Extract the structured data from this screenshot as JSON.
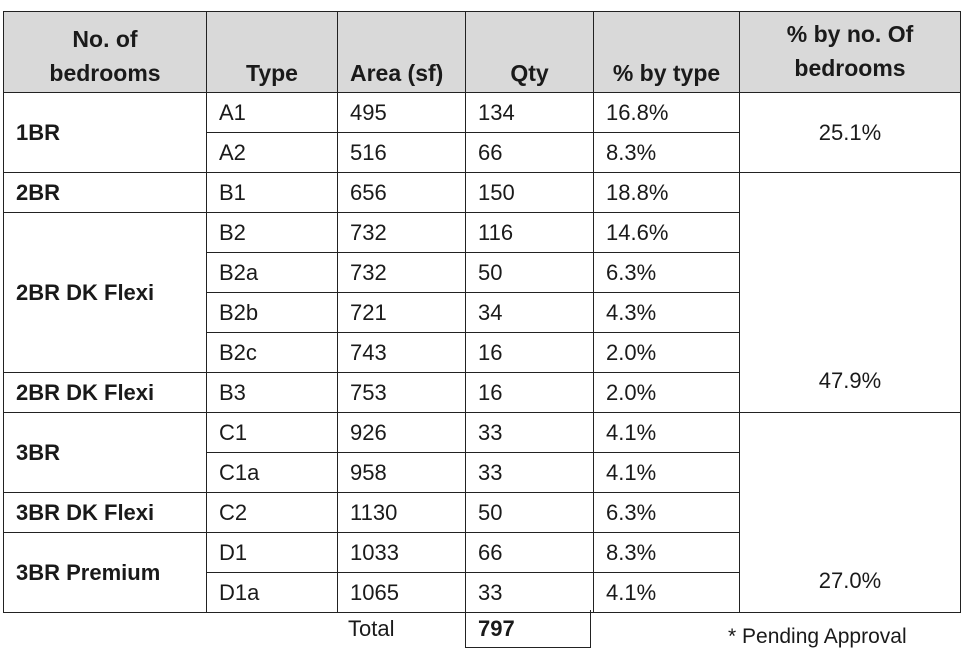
{
  "table": {
    "headers": {
      "bedrooms_line1": "No. of",
      "bedrooms_line2": "bedrooms",
      "type": "Type",
      "area": "Area (sf)",
      "qty": "Qty",
      "pct_type": "% by type",
      "pct_bedrooms_line1": "% by no. Of",
      "pct_bedrooms_line2": "bedrooms"
    },
    "groups": [
      {
        "label": "1BR"
      },
      {
        "label": "2BR"
      },
      {
        "label": "2BR DK Flexi"
      },
      {
        "label": "2BR DK Flexi"
      },
      {
        "label": "3BR"
      },
      {
        "label": "3BR DK Flexi"
      },
      {
        "label": "3BR Premium"
      }
    ],
    "rows": [
      {
        "type": "A1",
        "area": "495",
        "qty": "134",
        "pct": "16.8%"
      },
      {
        "type": "A2",
        "area": "516",
        "qty": "66",
        "pct": "8.3%"
      },
      {
        "type": "B1",
        "area": "656",
        "qty": "150",
        "pct": "18.8%"
      },
      {
        "type": "B2",
        "area": "732",
        "qty": "116",
        "pct": "14.6%"
      },
      {
        "type": "B2a",
        "area": "732",
        "qty": "50",
        "pct": "6.3%"
      },
      {
        "type": "B2b",
        "area": "721",
        "qty": "34",
        "pct": "4.3%"
      },
      {
        "type": "B2c",
        "area": "743",
        "qty": "16",
        "pct": "2.0%"
      },
      {
        "type": "B3",
        "area": "753",
        "qty": "16",
        "pct": "2.0%"
      },
      {
        "type": "C1",
        "area": "926",
        "qty": "33",
        "pct": "4.1%"
      },
      {
        "type": "C1a",
        "area": "958",
        "qty": "33",
        "pct": "4.1%"
      },
      {
        "type": "C2",
        "area": "1130",
        "qty": "50",
        "pct": "6.3%"
      },
      {
        "type": "D1",
        "area": "1033",
        "qty": "66",
        "pct": "8.3%"
      },
      {
        "type": "D1a",
        "area": "1065",
        "qty": "33",
        "pct": "4.1%"
      }
    ],
    "bedroom_pcts": [
      "25.1%",
      "47.9%",
      "27.0%"
    ]
  },
  "total": {
    "label": "Total",
    "value": "797"
  },
  "note": "* Pending Approval"
}
